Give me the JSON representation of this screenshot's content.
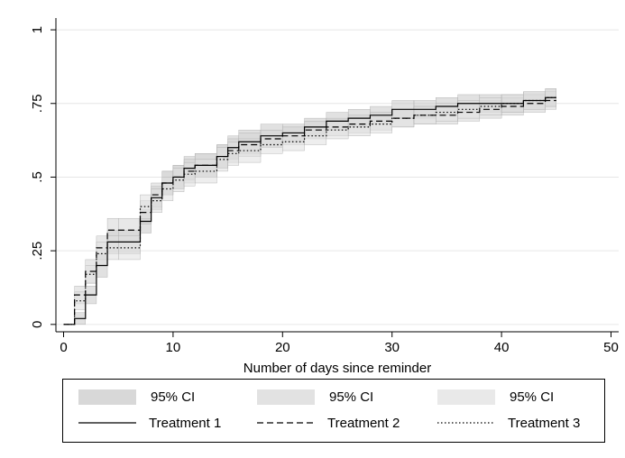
{
  "chart_data": {
    "type": "step",
    "x_label": "Number of days since reminder",
    "x": [
      0,
      1,
      2,
      3,
      4,
      5,
      7,
      8,
      9,
      10,
      11,
      12,
      14,
      15,
      16,
      18,
      20,
      22,
      24,
      26,
      28,
      30,
      32,
      34,
      36,
      38,
      40,
      42,
      44,
      45
    ],
    "xlim": [
      -0.7,
      50.7
    ],
    "xticks": [
      0,
      10,
      20,
      30,
      40,
      50
    ],
    "ylim": [
      -0.025,
      1.04
    ],
    "yticks": [
      0,
      {
        "value": 0.25,
        "label": ".25"
      },
      {
        "value": 0.5,
        "label": ".5"
      },
      {
        "value": 0.75,
        "label": ".75"
      },
      1
    ],
    "grid": true,
    "series": [
      {
        "name": "Treatment 1",
        "color": "#000000",
        "dash": "solid",
        "values": [
          0,
          0.02,
          0.1,
          0.2,
          0.28,
          0.28,
          0.35,
          0.43,
          0.48,
          0.5,
          0.53,
          0.54,
          0.57,
          0.6,
          0.62,
          0.64,
          0.65,
          0.67,
          0.69,
          0.7,
          0.71,
          0.73,
          0.73,
          0.74,
          0.75,
          0.75,
          0.75,
          0.76,
          0.77,
          0.77
        ],
        "ci_name": "95% CI",
        "ci_color": "#c8c8c8",
        "ci_lower": [
          0,
          0,
          0.07,
          0.16,
          0.24,
          0.24,
          0.31,
          0.39,
          0.44,
          0.46,
          0.49,
          0.5,
          0.53,
          0.56,
          0.58,
          0.6,
          0.62,
          0.64,
          0.66,
          0.67,
          0.68,
          0.7,
          0.7,
          0.71,
          0.72,
          0.72,
          0.72,
          0.73,
          0.74,
          0.74
        ],
        "ci_upper": [
          0,
          0.04,
          0.13,
          0.24,
          0.32,
          0.32,
          0.39,
          0.47,
          0.52,
          0.54,
          0.57,
          0.58,
          0.61,
          0.64,
          0.66,
          0.68,
          0.68,
          0.7,
          0.72,
          0.73,
          0.74,
          0.76,
          0.76,
          0.77,
          0.78,
          0.78,
          0.78,
          0.79,
          0.8,
          0.8
        ]
      },
      {
        "name": "Treatment 2",
        "color": "#000000",
        "dash": "dashed",
        "values": [
          0,
          0.1,
          0.18,
          0.26,
          0.32,
          0.32,
          0.38,
          0.44,
          0.48,
          0.5,
          0.52,
          0.54,
          0.57,
          0.59,
          0.61,
          0.63,
          0.64,
          0.66,
          0.67,
          0.68,
          0.69,
          0.7,
          0.71,
          0.71,
          0.72,
          0.73,
          0.74,
          0.75,
          0.76,
          0.76
        ],
        "ci_name": "95% CI",
        "ci_color": "#d6d6d6",
        "ci_lower": [
          0,
          0.07,
          0.14,
          0.22,
          0.28,
          0.28,
          0.34,
          0.4,
          0.44,
          0.46,
          0.48,
          0.5,
          0.53,
          0.55,
          0.57,
          0.6,
          0.61,
          0.63,
          0.64,
          0.65,
          0.66,
          0.67,
          0.68,
          0.68,
          0.69,
          0.7,
          0.71,
          0.72,
          0.73,
          0.73
        ],
        "ci_upper": [
          0,
          0.13,
          0.22,
          0.3,
          0.36,
          0.36,
          0.42,
          0.48,
          0.52,
          0.54,
          0.56,
          0.58,
          0.61,
          0.63,
          0.65,
          0.66,
          0.67,
          0.69,
          0.7,
          0.71,
          0.72,
          0.73,
          0.74,
          0.74,
          0.75,
          0.76,
          0.77,
          0.78,
          0.79,
          0.79
        ]
      },
      {
        "name": "Treatment 3",
        "color": "#000000",
        "dash": "dotted",
        "values": [
          0,
          0.08,
          0.17,
          0.24,
          0.26,
          0.26,
          0.4,
          0.42,
          0.46,
          0.49,
          0.51,
          0.52,
          0.56,
          0.58,
          0.59,
          0.61,
          0.62,
          0.64,
          0.66,
          0.67,
          0.68,
          0.7,
          0.71,
          0.72,
          0.73,
          0.74,
          0.75,
          0.76,
          0.77,
          0.77
        ],
        "ci_name": "95% CI",
        "ci_color": "#e0e0e0",
        "ci_lower": [
          0,
          0.05,
          0.14,
          0.2,
          0.22,
          0.22,
          0.36,
          0.38,
          0.42,
          0.45,
          0.47,
          0.48,
          0.52,
          0.54,
          0.55,
          0.58,
          0.59,
          0.61,
          0.63,
          0.64,
          0.65,
          0.67,
          0.68,
          0.69,
          0.7,
          0.71,
          0.72,
          0.73,
          0.74,
          0.74
        ],
        "ci_upper": [
          0,
          0.11,
          0.2,
          0.28,
          0.3,
          0.3,
          0.44,
          0.46,
          0.5,
          0.53,
          0.55,
          0.56,
          0.6,
          0.62,
          0.63,
          0.64,
          0.65,
          0.67,
          0.69,
          0.7,
          0.71,
          0.73,
          0.74,
          0.75,
          0.76,
          0.77,
          0.78,
          0.79,
          0.8,
          0.8
        ]
      }
    ]
  }
}
